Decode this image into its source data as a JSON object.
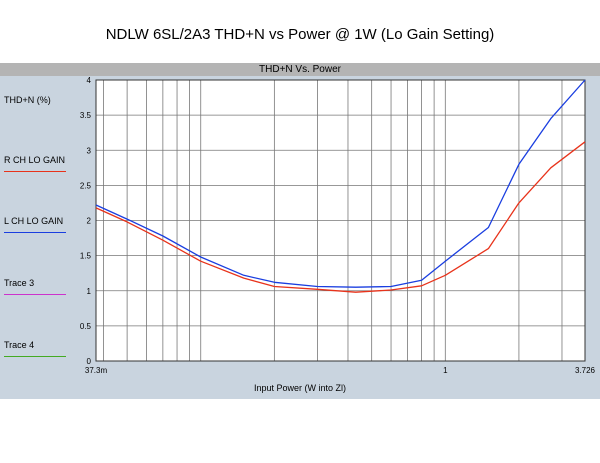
{
  "page_title": "NDLW 6SL/2A3 THD+N vs Power @ 1W (Lo Gain Setting)",
  "chart_data": {
    "type": "line",
    "title": "THD+N Vs. Power",
    "xlabel": "Input Power (W into Zl)",
    "ylabel": "THD+N (%)",
    "x_scale": "log",
    "xlim": [
      0.0373,
      3.726
    ],
    "ylim": [
      0,
      4
    ],
    "x_tick_labels": [
      "37.3m",
      "1",
      "3.726"
    ],
    "x_tick_values": [
      0.0373,
      1,
      3.726
    ],
    "y_ticks": [
      0,
      0.5,
      1,
      1.5,
      2,
      2.5,
      3,
      3.5,
      4
    ],
    "grid": true,
    "series": [
      {
        "name": "R CH LO GAIN",
        "color": "#e8331b",
        "x": [
          0.0373,
          0.05,
          0.07,
          0.1,
          0.15,
          0.2,
          0.3,
          0.43,
          0.6,
          0.8,
          1.0,
          1.5,
          2.0,
          2.7,
          3.726
        ],
        "y": [
          2.18,
          1.98,
          1.72,
          1.42,
          1.18,
          1.06,
          1.02,
          0.98,
          1.01,
          1.07,
          1.22,
          1.6,
          2.25,
          2.75,
          3.12
        ]
      },
      {
        "name": "L CH LO GAIN",
        "color": "#1a3ee0",
        "x": [
          0.0373,
          0.05,
          0.07,
          0.1,
          0.15,
          0.2,
          0.3,
          0.43,
          0.6,
          0.8,
          1.0,
          1.5,
          2.0,
          2.7,
          3.726
        ],
        "y": [
          2.22,
          2.02,
          1.78,
          1.48,
          1.22,
          1.12,
          1.06,
          1.05,
          1.06,
          1.15,
          1.42,
          1.9,
          2.8,
          3.45,
          4.0
        ]
      },
      {
        "name": "Trace 3",
        "color": "#cc33cc",
        "x": [],
        "y": []
      },
      {
        "name": "Trace 4",
        "color": "#44aa22",
        "x": [],
        "y": []
      }
    ]
  }
}
